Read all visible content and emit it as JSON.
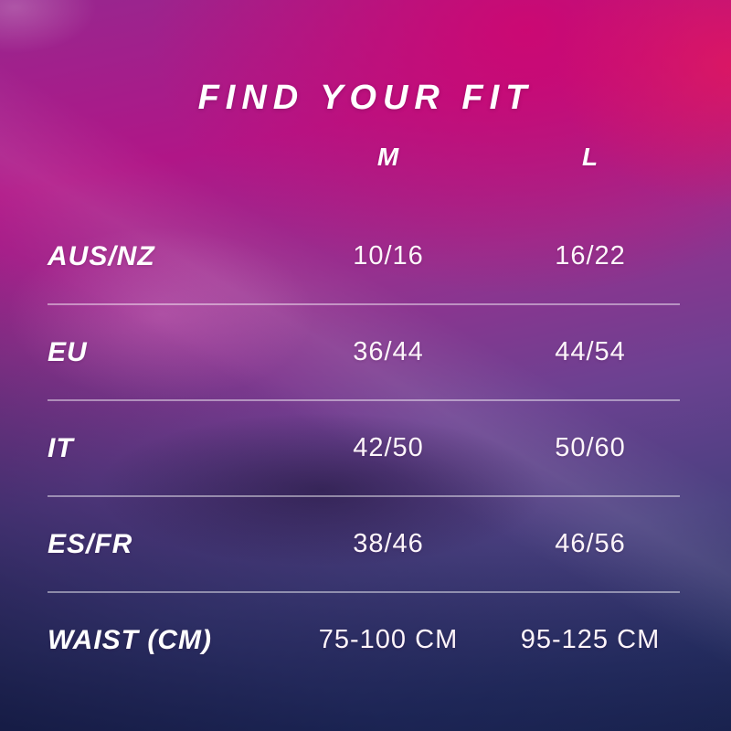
{
  "title": "FIND YOUR FIT",
  "colors": {
    "text": "#ffffff",
    "value_text": "#fdf5fa",
    "divider": "rgba(255,255,255,0.45)",
    "bg_magenta": "#d0066f",
    "bg_purple": "#6c4191",
    "bg_navy": "#1b2450"
  },
  "chart_data": {
    "type": "table",
    "title": "FIND YOUR FIT",
    "columns": [
      "",
      "M",
      "L"
    ],
    "rows": [
      [
        "AUS/NZ",
        "10/16",
        "16/22"
      ],
      [
        "EU",
        "36/44",
        "44/54"
      ],
      [
        "IT",
        "42/50",
        "50/60"
      ],
      [
        "ES/FR",
        "38/46",
        "46/56"
      ],
      [
        "WAIST (CM)",
        "75-100 CM",
        "95-125 CM"
      ]
    ],
    "layout": {
      "grid": "horizontal-dividers-between-rows",
      "legend": "none"
    }
  }
}
